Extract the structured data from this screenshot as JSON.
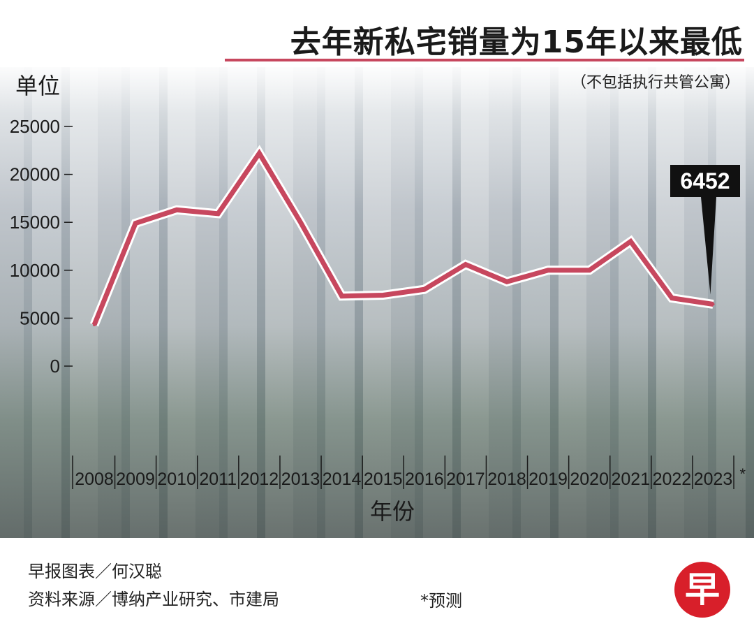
{
  "header": {
    "title": "去年新私宅销量为15年以来最低",
    "unit_label": "单位",
    "subtitle": "（不包括执行共管公寓）"
  },
  "chart_data": {
    "type": "line",
    "title": "去年新私宅销量为15年以来最低",
    "subtitle": "（不包括执行共管公寓）",
    "ylabel": "单位",
    "xlabel": "年份",
    "categories": [
      "2008",
      "2009",
      "2010",
      "2011",
      "2012",
      "2013",
      "2014",
      "2015",
      "2016",
      "2017",
      "2018",
      "2019",
      "2020",
      "2021",
      "2022",
      "2023"
    ],
    "forecast_marker": "*",
    "series": [
      {
        "values": [
          4300,
          14900,
          16300,
          15900,
          22200,
          15000,
          7300,
          7400,
          8000,
          10600,
          8800,
          10000,
          10000,
          13000,
          7100,
          6452
        ]
      }
    ],
    "ylim": [
      0,
      25000
    ],
    "yticks": [
      0,
      5000,
      10000,
      15000,
      20000,
      25000
    ],
    "annotation": {
      "label": "6452",
      "index": 15
    },
    "grid": false,
    "colors": {
      "line": "#c7475e",
      "line_outline": "#ffffff",
      "axis": "#1a1a1a",
      "annotation_bg": "#111111"
    }
  },
  "footer": {
    "credit": "早报图表／何汉聪",
    "source": "资料来源／博纳产业研究、市建局",
    "forecast_note": "*预测",
    "logo_char": "早"
  }
}
